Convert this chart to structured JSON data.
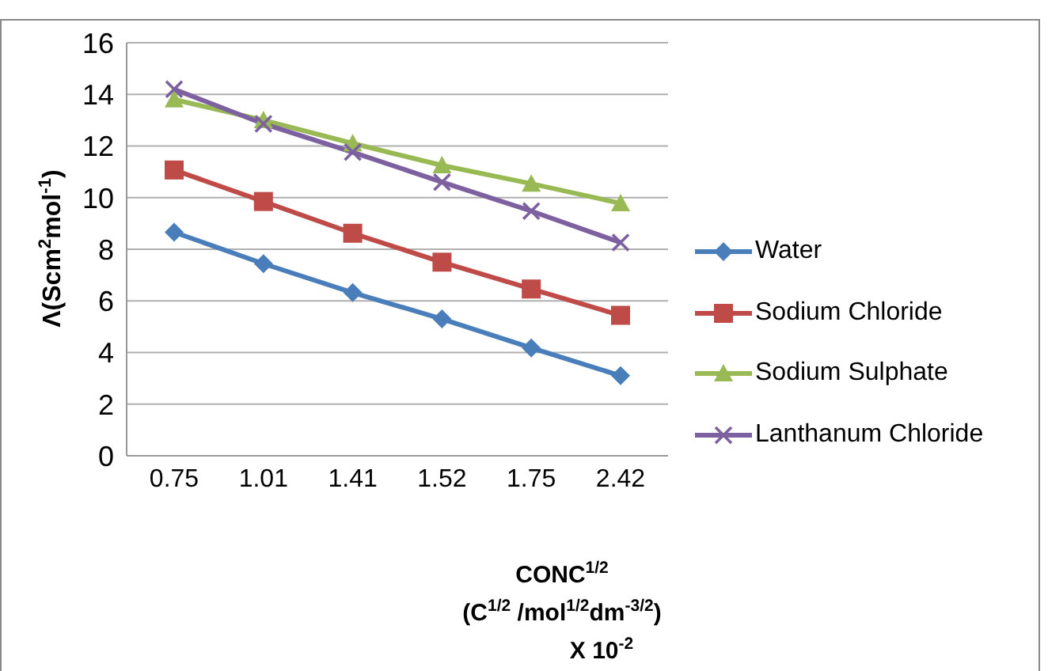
{
  "chart_data": {
    "type": "line",
    "ylabel": "Λ(Scm$^{2}$mol$^{-1}$)",
    "xlabel": "CONC$^{1/2}$\n(C$^{1/2}$ /mol$^{1/2}$dm$^{-3/2}$)\nX 10$^{-2}$",
    "categories": [
      "0.75",
      "1.01",
      "1.41",
      "1.52",
      "1.75",
      "2.42"
    ],
    "series": [
      {
        "name": "Water",
        "color": "#4a7ebb",
        "marker": "diamond",
        "values": [
          8.66,
          7.44,
          6.32,
          5.3,
          4.18,
          3.1
        ]
      },
      {
        "name": "Sodium Chloride",
        "color": "#be4b48",
        "marker": "square",
        "values": [
          11.07,
          9.85,
          8.62,
          7.5,
          6.46,
          5.44
        ]
      },
      {
        "name": "Sodium Sulphate",
        "color": "#98b954",
        "marker": "triangle",
        "values": [
          13.8,
          13.0,
          12.1,
          11.25,
          10.54,
          9.78
        ]
      },
      {
        "name": "Lanthanum Chloride",
        "color": "#7d60a0",
        "marker": "cross",
        "values": [
          14.2,
          12.86,
          11.76,
          10.6,
          9.48,
          8.26
        ]
      }
    ],
    "ylim": [
      0,
      16
    ],
    "yticks": [
      0,
      2,
      4,
      6,
      8,
      10,
      12,
      14,
      16
    ],
    "grid": "y",
    "legend": "right",
    "line_style": "solid"
  }
}
